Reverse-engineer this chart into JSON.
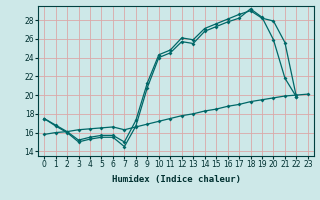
{
  "xlabel": "Humidex (Indice chaleur)",
  "background_color": "#cde8e8",
  "grid_color": "#dba8a8",
  "line_color": "#006868",
  "xlim": [
    -0.5,
    23.5
  ],
  "ylim": [
    13.5,
    29.5
  ],
  "xticks": [
    0,
    1,
    2,
    3,
    4,
    5,
    6,
    7,
    8,
    9,
    10,
    11,
    12,
    13,
    14,
    15,
    16,
    17,
    18,
    19,
    20,
    21,
    22,
    23
  ],
  "yticks": [
    14,
    16,
    18,
    20,
    22,
    24,
    26,
    28
  ],
  "line1_x": [
    0,
    1,
    2,
    3,
    4,
    5,
    6,
    7,
    8,
    9,
    10,
    11,
    12,
    13,
    14,
    15,
    16,
    17,
    18,
    19,
    20,
    21,
    22
  ],
  "line1_y": [
    17.5,
    16.7,
    16.0,
    15.0,
    15.3,
    15.5,
    15.5,
    14.5,
    16.7,
    20.8,
    24.0,
    24.5,
    25.7,
    25.5,
    26.8,
    27.3,
    27.8,
    28.2,
    29.2,
    28.3,
    25.9,
    21.8,
    19.8
  ],
  "line2_x": [
    0,
    1,
    2,
    3,
    4,
    5,
    6,
    7,
    8,
    9,
    10,
    11,
    12,
    13,
    14,
    15,
    16,
    17,
    18,
    19,
    20,
    21,
    22
  ],
  "line2_y": [
    17.5,
    16.8,
    16.1,
    15.2,
    15.5,
    15.7,
    15.7,
    15.0,
    17.3,
    21.3,
    24.3,
    24.8,
    26.1,
    25.9,
    27.1,
    27.6,
    28.1,
    28.6,
    29.0,
    28.2,
    27.9,
    25.6,
    19.8
  ],
  "line3_x": [
    0,
    1,
    2,
    3,
    4,
    5,
    6,
    7,
    8,
    9,
    10,
    11,
    12,
    13,
    14,
    15,
    16,
    17,
    18,
    19,
    20,
    21,
    22,
    23
  ],
  "line3_y": [
    15.8,
    16.0,
    16.1,
    16.3,
    16.4,
    16.5,
    16.6,
    16.3,
    16.6,
    16.9,
    17.2,
    17.5,
    17.8,
    18.0,
    18.3,
    18.5,
    18.8,
    19.0,
    19.3,
    19.5,
    19.7,
    19.9,
    20.0,
    20.1
  ]
}
